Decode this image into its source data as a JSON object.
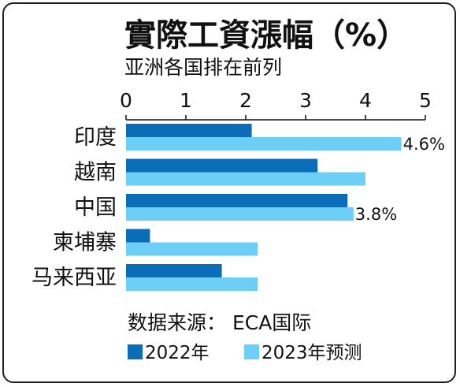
{
  "chart_data": {
    "type": "bar",
    "orientation": "horizontal",
    "title": "實際工資漲幅（%）",
    "subtitle": "亚洲各国排在前列",
    "categories": [
      "印度",
      "越南",
      "中国",
      "柬埔寨",
      "马来西亚"
    ],
    "series": [
      {
        "name": "2022年",
        "color": "#0a6db7",
        "values": [
          2.1,
          3.2,
          3.7,
          0.4,
          1.6
        ]
      },
      {
        "name": "2023年预测",
        "color": "#6dcff6",
        "values": [
          4.6,
          4.0,
          3.8,
          2.2,
          2.2
        ]
      }
    ],
    "data_labels": [
      {
        "category": "印度",
        "series": "2023年预测",
        "text": "4.6%"
      },
      {
        "category": "中国",
        "series": "2023年预测",
        "text": "3.8%"
      }
    ],
    "xlim": [
      0,
      5
    ],
    "xticks": [
      "0",
      "1",
      "2",
      "3",
      "4",
      "5"
    ],
    "axis_position": "top",
    "grid": false,
    "legend_placement": "bottom-left",
    "source": "数据来源： ECA国际"
  }
}
